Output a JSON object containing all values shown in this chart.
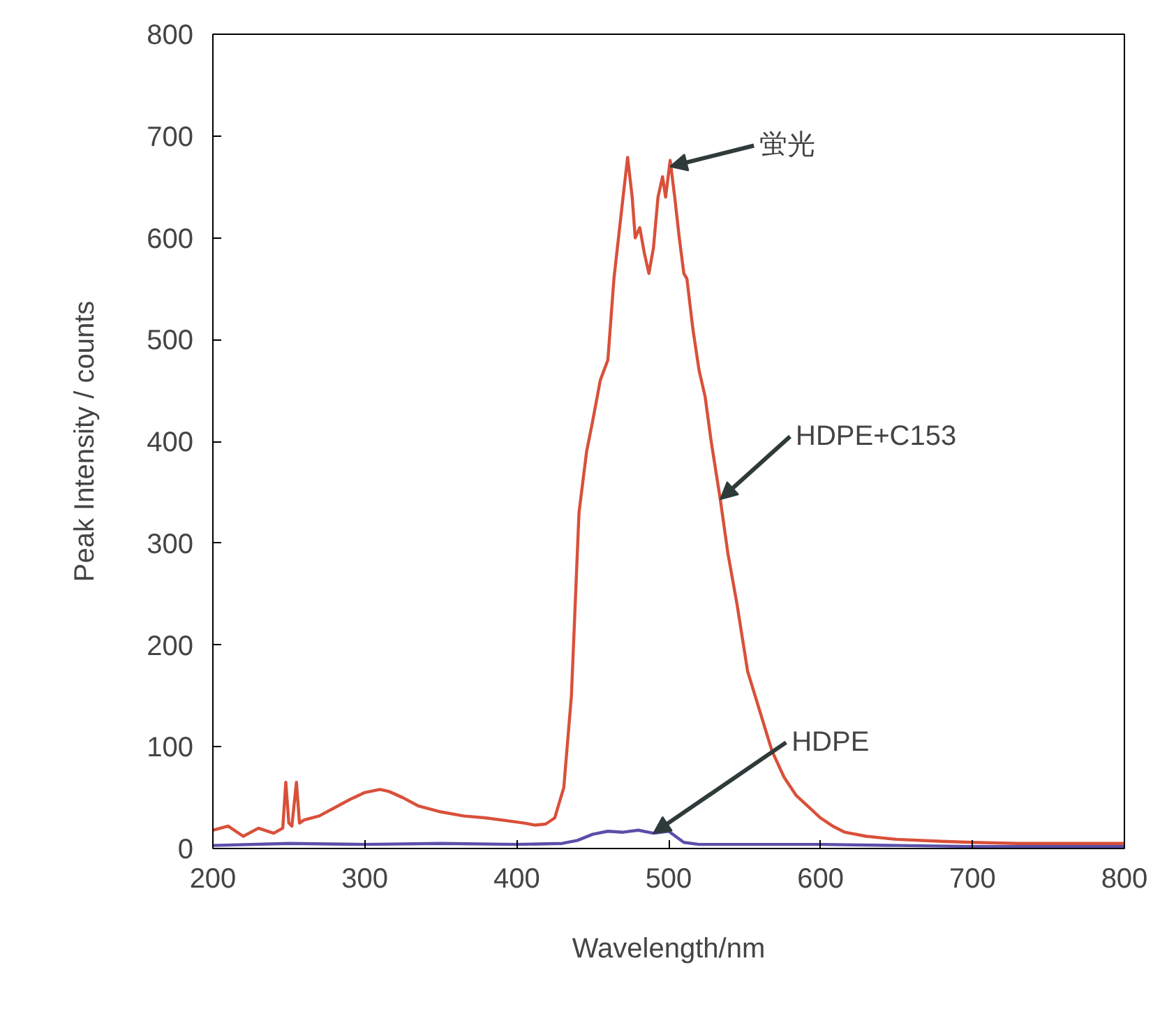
{
  "chart_data": {
    "type": "line",
    "xlabel": "Wavelength/nm",
    "ylabel": "Peak Intensity / counts",
    "xlim": [
      200,
      800
    ],
    "ylim": [
      0,
      800
    ],
    "xticks": [
      200,
      300,
      400,
      500,
      600,
      700,
      800
    ],
    "yticks": [
      0,
      100,
      200,
      300,
      400,
      500,
      600,
      700,
      800
    ],
    "grid": false,
    "marker": "none",
    "line_style": "solid",
    "series": [
      {
        "color": "#d9503a",
        "x": [
          200,
          210,
          220,
          230,
          240,
          246,
          248,
          250,
          252,
          255,
          257,
          260,
          270,
          280,
          290,
          300,
          310,
          316,
          325,
          335,
          350,
          365,
          380,
          395,
          405,
          412,
          419,
          425,
          431,
          436,
          441,
          446,
          450,
          455,
          460,
          464,
          467,
          470,
          473,
          476,
          478,
          481,
          484,
          487,
          490,
          493,
          496,
          498,
          501,
          504,
          507,
          510,
          512,
          516,
          520,
          524,
          528,
          534,
          539,
          545,
          552,
          560,
          568,
          576,
          584,
          592,
          600,
          608,
          616,
          630,
          650,
          680,
          700,
          730,
          760,
          800
        ],
        "values": [
          18,
          22,
          12,
          20,
          15,
          20,
          65,
          25,
          22,
          65,
          25,
          28,
          32,
          40,
          48,
          55,
          58,
          56,
          50,
          42,
          36,
          32,
          30,
          27,
          25,
          23,
          24,
          30,
          60,
          150,
          330,
          390,
          420,
          460,
          480,
          560,
          600,
          640,
          679,
          640,
          600,
          610,
          585,
          565,
          590,
          640,
          660,
          640,
          676,
          640,
          600,
          565,
          560,
          510,
          470,
          444,
          400,
          343,
          290,
          240,
          174,
          135,
          96,
          70,
          52,
          41,
          30,
          22,
          16,
          12,
          9,
          7,
          6,
          5,
          5,
          5
        ]
      },
      {
        "color": "#5a4fa8",
        "x": [
          200,
          250,
          300,
          350,
          400,
          430,
          440,
          450,
          460,
          470,
          480,
          490,
          500,
          510,
          520,
          550,
          600,
          650,
          700,
          750,
          800
        ],
        "values": [
          3,
          5,
          4,
          5,
          4,
          5,
          8,
          14,
          17,
          16,
          18,
          15,
          17,
          6,
          4,
          4,
          4,
          3,
          2,
          2,
          2
        ]
      }
    ],
    "annotations": [
      {
        "text": "蛍光",
        "x": 501,
        "y": 670
      },
      {
        "text": "HDPE+C153",
        "x": 534,
        "y": 343
      },
      {
        "text": "HDPE",
        "x": 490,
        "y": 15
      }
    ]
  }
}
